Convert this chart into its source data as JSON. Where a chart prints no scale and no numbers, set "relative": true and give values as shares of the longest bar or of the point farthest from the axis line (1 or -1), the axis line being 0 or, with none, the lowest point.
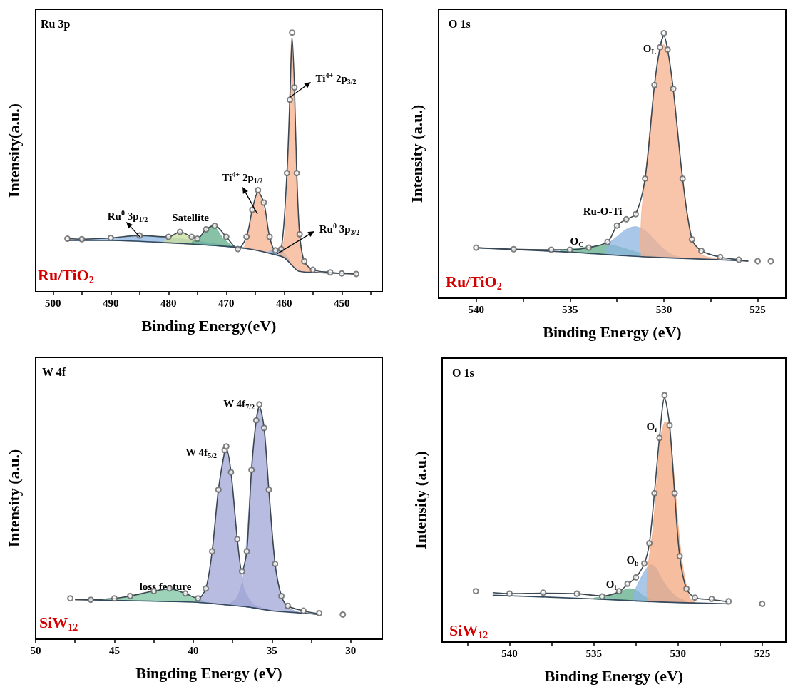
{
  "chart_data": [
    {
      "type": "line",
      "title": "Ru 3p",
      "xlabel": "Binding Energy(eV)",
      "ylabel": "Intensity(a.u.)",
      "relative": true,
      "xlim": [
        503,
        443
      ],
      "xticks": [
        500,
        {
          "value": 495,
          "label": null
        },
        490,
        {
          "value": 485,
          "label": null
        },
        480,
        {
          "value": 475,
          "label": null
        },
        470,
        {
          "value": 465,
          "label": null
        },
        460,
        {
          "value": 455,
          "label": null
        },
        450,
        {
          "value": 445,
          "label": null
        }
      ],
      "annotations": [
        "Ru/TiO$_{2}$",
        "Ru$^{0}$ 3p$_{1/2}$",
        "Satellite",
        "Ti$^{4+}$ 2p$_{1/2}$",
        "Ti$^{4+}$ 2p$_{3/2}$",
        "Ru$^{0}$ 3p$_{3/2}$"
      ],
      "series": [
        {
          "color": "#34495e",
          "x": [
            497.5,
            490,
            480,
            470,
            466,
            462,
            460,
            458.5,
            457.5,
            455,
            447.5
          ],
          "values": [
            0.198,
            0.198,
            0.189,
            0.175,
            0.165,
            0.146,
            0.132,
            0.099,
            0.08,
            0.075,
            0.069
          ]
        },
        {
          "type": "area",
          "color": "#8cb4e0",
          "x": [
            497.5,
            490,
            484,
            478,
            472,
            466,
            462,
            460
          ],
          "values": [
            0.2,
            0.207,
            0.214,
            0.205,
            0.185,
            0.168,
            0.148,
            0.133
          ]
        },
        {
          "type": "area",
          "color": "#c9df9a",
          "x": [
            481,
            479.5,
            478,
            476.5,
            475
          ],
          "values": [
            0.19,
            0.215,
            0.23,
            0.21,
            0.188
          ]
        },
        {
          "type": "area",
          "color": "#5fae8a",
          "x": [
            476,
            474,
            472.3,
            470.5,
            468.5
          ],
          "values": [
            0.19,
            0.225,
            0.255,
            0.205,
            0.17
          ]
        },
        {
          "type": "area",
          "color": "#f5b08e",
          "x": [
            467,
            466,
            465,
            464.5,
            464,
            463,
            462
          ],
          "values": [
            0.165,
            0.24,
            0.36,
            0.39,
            0.37,
            0.26,
            0.16
          ]
        },
        {
          "type": "area",
          "color": "#8cb4e0",
          "x": [
            463,
            461.5,
            460,
            459
          ],
          "values": [
            0.15,
            0.165,
            0.15,
            0.12
          ]
        },
        {
          "type": "area",
          "color": "#f5b08e",
          "x": [
            461,
            460,
            459.3,
            459,
            458.7,
            458.4,
            458,
            457.5,
            456.5,
            455,
            453
          ],
          "values": [
            0.14,
            0.2,
            0.5,
            0.75,
            0.98,
            0.8,
            0.5,
            0.25,
            0.12,
            0.08,
            0.073
          ]
        },
        {
          "color": "#3a4750",
          "x": [
            497.5,
            495,
            490,
            485,
            480,
            478,
            476,
            475,
            473.5,
            472,
            470,
            468,
            466.5,
            465.5,
            464.5,
            463.5,
            462.5,
            461.5,
            460.5,
            459.5,
            459,
            458.6,
            458.2,
            457.8,
            457.3,
            456.5,
            455,
            452,
            450,
            447.5
          ],
          "values": [
            0.205,
            0.203,
            0.208,
            0.217,
            0.212,
            0.231,
            0.212,
            0.205,
            0.241,
            0.255,
            0.212,
            0.165,
            0.212,
            0.316,
            0.385,
            0.344,
            0.212,
            0.16,
            0.165,
            0.458,
            0.741,
            0.98,
            0.788,
            0.458,
            0.222,
            0.118,
            0.085,
            0.075,
            0.071,
            0.069
          ]
        },
        {
          "type": "scatter",
          "color": "#606060",
          "marker": "circle",
          "x": [
            497.5,
            495,
            490,
            485,
            480,
            478,
            476,
            475,
            473.5,
            472,
            470,
            468,
            466.5,
            465.5,
            464.5,
            463.5,
            462.5,
            461.5,
            460.5,
            459.5,
            459,
            458.6,
            458.2,
            457.8,
            457.3,
            456.5,
            455,
            452,
            450,
            447.5
          ],
          "values": [
            0.205,
            0.203,
            0.208,
            0.217,
            0.212,
            0.231,
            0.212,
            0.205,
            0.241,
            0.255,
            0.212,
            0.165,
            0.212,
            0.316,
            0.392,
            0.344,
            0.212,
            0.16,
            0.165,
            0.458,
            0.741,
            1,
            0.788,
            0.458,
            0.222,
            0.118,
            0.085,
            0.075,
            0.071,
            0.069
          ]
        }
      ]
    },
    {
      "type": "line",
      "title": "O 1s",
      "xlabel": "Binding Energy (eV)",
      "ylabel": "Intensity (a.u.)",
      "relative": true,
      "xlim": [
        542,
        523.5
      ],
      "xticks": [
        540,
        {
          "value": 537.5,
          "label": null
        },
        535,
        {
          "value": 532.5,
          "label": null
        },
        530,
        {
          "value": 527.5,
          "label": null
        },
        525
      ],
      "annotations": [
        "Ru/TiO$_{2}$",
        "O$_{L}$",
        "Ru-O-Ti",
        "O$_{C}$"
      ],
      "series": [
        {
          "color": "#34495e",
          "x": [
            540,
            535,
            532,
            530,
            527,
            525.5
          ],
          "values": [
            0.19,
            0.174,
            0.16,
            0.153,
            0.145,
            0.14
          ]
        },
        {
          "type": "area",
          "color": "#5fae8a",
          "x": [
            535.5,
            534.5,
            533.5,
            533,
            532.5,
            531.5,
            530.5
          ],
          "values": [
            0.18,
            0.19,
            0.198,
            0.202,
            0.196,
            0.175,
            0.158
          ]
        },
        {
          "type": "area",
          "color": "#8cb4e0",
          "x": [
            533,
            532.5,
            532,
            531.5,
            531,
            530.5,
            530,
            529.5,
            529
          ],
          "values": [
            0.2,
            0.232,
            0.26,
            0.27,
            0.255,
            0.22,
            0.185,
            0.162,
            0.152
          ]
        },
        {
          "type": "area",
          "color": "#f5b08e",
          "x": [
            531.2,
            531,
            530.5,
            530.2,
            530,
            529.8,
            529.5,
            529,
            528.5,
            528,
            527
          ],
          "values": [
            0.3,
            0.45,
            0.8,
            0.94,
            0.957,
            0.93,
            0.78,
            0.45,
            0.23,
            0.165,
            0.147
          ]
        },
        {
          "color": "#3a4750",
          "x": [
            540,
            538,
            536,
            535,
            534,
            533,
            532.5,
            532,
            531.5,
            531,
            530.5,
            530.2,
            530,
            529.8,
            529.5,
            529,
            528.5,
            528,
            527,
            526,
            525.5
          ],
          "values": [
            0.191,
            0.185,
            0.183,
            0.183,
            0.191,
            0.212,
            0.274,
            0.298,
            0.317,
            0.451,
            0.804,
            0.947,
            0.99,
            0.938,
            0.79,
            0.451,
            0.222,
            0.179,
            0.155,
            0.145,
            0.14
          ]
        },
        {
          "type": "scatter",
          "color": "#606060",
          "marker": "circle",
          "x": [
            540,
            538,
            536,
            535,
            534,
            533,
            532.5,
            532,
            531.5,
            531,
            530.5,
            530.2,
            530,
            529.8,
            529.5,
            529,
            528.5,
            528,
            527,
            526,
            525,
            524.3
          ],
          "values": [
            0.191,
            0.185,
            0.183,
            0.183,
            0.191,
            0.212,
            0.274,
            0.298,
            0.317,
            0.451,
            0.804,
            0.947,
            1,
            0.938,
            0.79,
            0.451,
            0.222,
            0.179,
            0.155,
            0.145,
            0.14,
            0.14
          ]
        }
      ]
    },
    {
      "type": "line",
      "title": "W 4f",
      "xlabel": "Bingding Energy (eV)",
      "ylabel": "Intensity (a.u.)",
      "relative": true,
      "xlim": [
        50,
        28
      ],
      "xticks": [
        50,
        {
          "value": 47.5,
          "label": null
        },
        45,
        {
          "value": 42.5,
          "label": null
        },
        40,
        {
          "value": 37.5,
          "label": null
        },
        35,
        {
          "value": 32.5,
          "label": null
        },
        30
      ],
      "annotations": [
        "SiW$_{12}$",
        "W 4f$_{7/2}$",
        "W 4f$_{5/2}$",
        "loss feature"
      ],
      "series": [
        {
          "color": "#34495e",
          "x": [
            47.5,
            40,
            38,
            36.5,
            35,
            33,
            32
          ],
          "values": [
            0.168,
            0.158,
            0.147,
            0.137,
            0.121,
            0.111,
            0.105
          ]
        },
        {
          "type": "area",
          "color": "#7cc4a0",
          "x": [
            45.5,
            44,
            43,
            42,
            41,
            40,
            39.3
          ],
          "values": [
            0.17,
            0.18,
            0.195,
            0.21,
            0.207,
            0.18,
            0.16
          ]
        },
        {
          "type": "area",
          "color": "#9fa6d6",
          "x": [
            39.8,
            39.2,
            38.8,
            38.4,
            38,
            37.9,
            37.6,
            37.2,
            36.8,
            36.2,
            35.5
          ],
          "values": [
            0.16,
            0.2,
            0.36,
            0.62,
            0.79,
            0.8,
            0.7,
            0.42,
            0.22,
            0.15,
            0.13
          ]
        },
        {
          "type": "area",
          "color": "#9fa6d6",
          "x": [
            37.8,
            37.2,
            36.8,
            36.3,
            36,
            35.8,
            35.5,
            35.2,
            34.8,
            34.4,
            34,
            33.3
          ],
          "values": [
            0.146,
            0.18,
            0.28,
            0.7,
            0.92,
            0.98,
            0.88,
            0.63,
            0.32,
            0.18,
            0.135,
            0.115
          ]
        },
        {
          "color": "#3a4750",
          "x": [
            47.5,
            46.5,
            45,
            44,
            42.5,
            41.5,
            40.5,
            39.7,
            39.2,
            38.8,
            38.4,
            38,
            37.9,
            37.6,
            37.2,
            36.9,
            36.6,
            36.3,
            36,
            35.8,
            35.5,
            35.2,
            34.8,
            34.4,
            34,
            33,
            32
          ],
          "values": [
            0.17,
            0.168,
            0.174,
            0.184,
            0.205,
            0.214,
            0.195,
            0.174,
            0.216,
            0.374,
            0.637,
            0.8,
            0.81,
            0.711,
            0.426,
            0.289,
            0.374,
            0.721,
            0.932,
            0.99,
            0.9,
            0.637,
            0.321,
            0.184,
            0.142,
            0.121,
            0.108
          ]
        },
        {
          "type": "scatter",
          "color": "#606060",
          "marker": "circle",
          "x": [
            47.8,
            46.5,
            45,
            44,
            42.5,
            41.5,
            40.5,
            39.7,
            39.2,
            38.8,
            38.4,
            38,
            37.9,
            37.6,
            37.2,
            36.9,
            36.6,
            36.3,
            36,
            35.8,
            35.5,
            35.2,
            34.8,
            34.4,
            34,
            33,
            32,
            30.5
          ],
          "values": [
            0.174,
            0.168,
            0.174,
            0.184,
            0.205,
            0.216,
            0.195,
            0.174,
            0.216,
            0.374,
            0.637,
            0.805,
            0.821,
            0.711,
            0.426,
            0.289,
            0.374,
            0.721,
            0.932,
            1,
            0.9,
            0.637,
            0.321,
            0.184,
            0.142,
            0.121,
            0.111,
            0.105
          ]
        }
      ]
    },
    {
      "type": "line",
      "title": "O 1s",
      "xlabel": "Binding Energy (eV)",
      "ylabel": "Intensity (a.u.)",
      "relative": true,
      "xlim": [
        544,
        523.6
      ],
      "xticks": [
        {
          "value": 542.5,
          "label": null
        },
        540,
        {
          "value": 537.5,
          "label": null
        },
        535,
        {
          "value": 532.5,
          "label": null
        },
        530,
        {
          "value": 527.5,
          "label": null
        },
        525
      ],
      "annotations": [
        "SiW$_{12}$",
        "O$_{t}$",
        "O$_{b}$",
        "O$_{i}$"
      ],
      "series": [
        {
          "color": "#34495e",
          "x": [
            541,
            535,
            532,
            530,
            527
          ],
          "values": [
            0.19,
            0.175,
            0.165,
            0.16,
            0.155
          ]
        },
        {
          "type": "area",
          "color": "#5fae8a",
          "x": [
            535,
            534,
            533.3,
            532.9,
            532.5,
            532,
            531.5,
            530.5
          ],
          "values": [
            0.178,
            0.19,
            0.208,
            0.216,
            0.21,
            0.185,
            0.17,
            0.162
          ]
        },
        {
          "type": "area",
          "color": "#8cb4e0",
          "x": [
            532.6,
            532.2,
            531.8,
            531.6,
            531.3,
            531,
            530.5,
            530,
            529.5
          ],
          "values": [
            0.2,
            0.26,
            0.305,
            0.313,
            0.3,
            0.26,
            0.21,
            0.18,
            0.165
          ]
        },
        {
          "type": "area",
          "color": "#f3a77e",
          "x": [
            531.8,
            531.5,
            531.2,
            531,
            530.75,
            530.5,
            530.2,
            530,
            529.7,
            529.3,
            529
          ],
          "values": [
            0.29,
            0.45,
            0.7,
            0.84,
            0.893,
            0.85,
            0.65,
            0.48,
            0.3,
            0.18,
            0.162
          ]
        },
        {
          "color": "#3a4750",
          "x": [
            541,
            540,
            538,
            536,
            534.5,
            533.5,
            533,
            532.5,
            532,
            531.7,
            531.4,
            531.1,
            530.8,
            530.5,
            530.2,
            529.9,
            529.5,
            529,
            528,
            527
          ],
          "values": [
            0.2,
            0.196,
            0.198,
            0.196,
            0.187,
            0.204,
            0.234,
            0.262,
            0.318,
            0.4,
            0.603,
            0.827,
            0.99,
            0.878,
            0.603,
            0.348,
            0.216,
            0.18,
            0.172,
            0.163
          ]
        },
        {
          "type": "scatter",
          "color": "#606060",
          "marker": "circle",
          "x": [
            542,
            540,
            538,
            536,
            534.5,
            533.5,
            533,
            532.5,
            532,
            531.7,
            531.4,
            531.1,
            530.8,
            530.5,
            530.2,
            529.9,
            529.5,
            529,
            528,
            527,
            525
          ],
          "values": [
            0.206,
            0.196,
            0.2,
            0.196,
            0.185,
            0.206,
            0.236,
            0.262,
            0.318,
            0.4,
            0.603,
            0.827,
            1,
            0.878,
            0.603,
            0.348,
            0.216,
            0.18,
            0.175,
            0.165,
            0.155
          ]
        }
      ]
    }
  ]
}
